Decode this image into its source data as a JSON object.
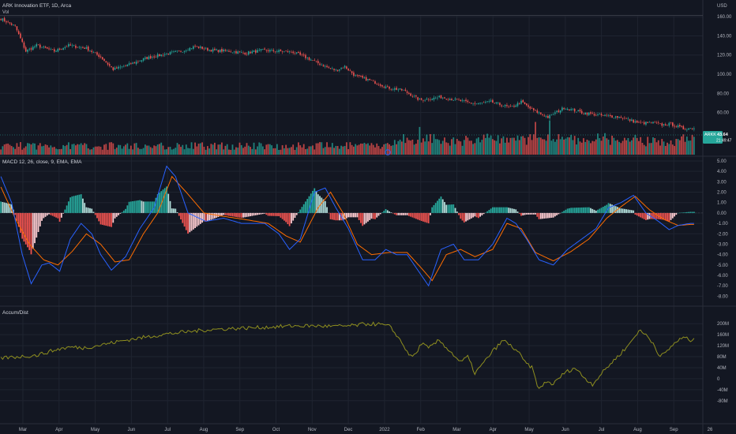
{
  "header": {
    "symbol_title": "ARK Innovation ETF, 1D, Arca",
    "vol_label": "Vol",
    "currency": "USD"
  },
  "price_badge": {
    "ticker": "ARKK",
    "price": "43.64",
    "countdown": "21:49:47"
  },
  "colors": {
    "background": "#131722",
    "up": "#26a69a",
    "down": "#ef5350",
    "macd_line": "#2962ff",
    "signal_line": "#ff6d00",
    "accum_line": "#8f8f1f",
    "badge": "#26a69a"
  },
  "chart_data": [
    {
      "type": "candlestick",
      "title": "ARK Innovation ETF, 1D, Arca",
      "y_ticks": [
        "160.00",
        "140.00",
        "120.00",
        "100.00",
        "80.00",
        "60.00"
      ],
      "ylim": [
        39,
        161
      ],
      "x_ticks": [
        "Mar",
        "Apr",
        "May",
        "Jun",
        "Jul",
        "Aug",
        "Sep",
        "Oct",
        "Nov",
        "Dec",
        "2022",
        "Feb",
        "Mar",
        "Apr",
        "May",
        "Jun",
        "Jul",
        "Aug",
        "Sep",
        "26"
      ],
      "close_path": [
        [
          0,
          158
        ],
        [
          8,
          150
        ],
        [
          14,
          124
        ],
        [
          20,
          130
        ],
        [
          30,
          124
        ],
        [
          38,
          130
        ],
        [
          48,
          127
        ],
        [
          56,
          118
        ],
        [
          63,
          105
        ],
        [
          72,
          110
        ],
        [
          82,
          117
        ],
        [
          92,
          121
        ],
        [
          101,
          124
        ],
        [
          109,
          129
        ],
        [
          118,
          125
        ],
        [
          128,
          124
        ],
        [
          137,
          122
        ],
        [
          147,
          125
        ],
        [
          156,
          124
        ],
        [
          164,
          123
        ],
        [
          173,
          116
        ],
        [
          182,
          108
        ],
        [
          188,
          104
        ],
        [
          193,
          108
        ],
        [
          199,
          98
        ],
        [
          208,
          93
        ],
        [
          217,
          86
        ],
        [
          226,
          83
        ],
        [
          235,
          73
        ],
        [
          247,
          76
        ],
        [
          256,
          73
        ],
        [
          266,
          69
        ],
        [
          275,
          71
        ],
        [
          286,
          65
        ],
        [
          292,
          71
        ],
        [
          298,
          63
        ],
        [
          307,
          55
        ],
        [
          316,
          65
        ],
        [
          326,
          60
        ],
        [
          336,
          57
        ],
        [
          348,
          55
        ],
        [
          358,
          49
        ],
        [
          366,
          49
        ],
        [
          371,
          47
        ],
        [
          376,
          48
        ],
        [
          383,
          43
        ],
        [
          390,
          44
        ]
      ],
      "volume": {
        "label": "Vol",
        "bars": 390
      },
      "last_price": 43.64
    },
    {
      "type": "line+histogram",
      "title": "MACD 12, 26, close, 9, EMA, EMA",
      "y_ticks": [
        "5.00",
        "4.00",
        "3.00",
        "2.00",
        "1.00",
        "0.00",
        "-1.00",
        "-2.00",
        "-3.00",
        "-4.00",
        "-5.00",
        "-6.00",
        "-7.00",
        "-8.00"
      ],
      "ylim": [
        -8.5,
        5.3
      ],
      "macd_path": [
        [
          0,
          3.5
        ],
        [
          6,
          1
        ],
        [
          12,
          -4
        ],
        [
          17,
          -6.8
        ],
        [
          23,
          -5
        ],
        [
          27,
          -4.8
        ],
        [
          33,
          -5.6
        ],
        [
          39,
          -2.5
        ],
        [
          45,
          -1
        ],
        [
          51,
          -2
        ],
        [
          56,
          -4
        ],
        [
          62,
          -5.5
        ],
        [
          70,
          -4.2
        ],
        [
          78,
          -1.5
        ],
        [
          86,
          0.5
        ],
        [
          93,
          4.5
        ],
        [
          98,
          3.5
        ],
        [
          105,
          0
        ],
        [
          115,
          -0.8
        ],
        [
          125,
          -0.5
        ],
        [
          135,
          -1
        ],
        [
          148,
          -1
        ],
        [
          156,
          -2
        ],
        [
          162,
          -3.5
        ],
        [
          168,
          -2.5
        ],
        [
          176,
          2
        ],
        [
          182,
          2.4
        ],
        [
          188,
          0.5
        ],
        [
          195,
          -1.5
        ],
        [
          203,
          -4.5
        ],
        [
          210,
          -4.5
        ],
        [
          216,
          -3.5
        ],
        [
          222,
          -4
        ],
        [
          228,
          -4
        ],
        [
          234,
          -5.5
        ],
        [
          240,
          -7
        ],
        [
          247,
          -3.5
        ],
        [
          254,
          -3
        ],
        [
          260,
          -4.5
        ],
        [
          268,
          -4.5
        ],
        [
          276,
          -3
        ],
        [
          284,
          -0.5
        ],
        [
          289,
          -1
        ],
        [
          295,
          -2.5
        ],
        [
          302,
          -4.5
        ],
        [
          310,
          -5
        ],
        [
          318,
          -3.5
        ],
        [
          326,
          -2.5
        ],
        [
          334,
          -1.5
        ],
        [
          341,
          0.5
        ],
        [
          348,
          1
        ],
        [
          355,
          1.7
        ],
        [
          362,
          0
        ],
        [
          369,
          -0.8
        ],
        [
          375,
          -1.6
        ],
        [
          380,
          -1.2
        ],
        [
          387,
          -1
        ]
      ],
      "signal_path": [
        [
          0,
          2.5
        ],
        [
          8,
          -0.5
        ],
        [
          16,
          -3
        ],
        [
          24,
          -4.5
        ],
        [
          32,
          -5
        ],
        [
          40,
          -3.7
        ],
        [
          48,
          -2
        ],
        [
          56,
          -3
        ],
        [
          64,
          -4.7
        ],
        [
          72,
          -4.5
        ],
        [
          80,
          -2
        ],
        [
          88,
          0
        ],
        [
          96,
          3.5
        ],
        [
          104,
          2
        ],
        [
          114,
          0
        ],
        [
          124,
          -0.3
        ],
        [
          136,
          -0.6
        ],
        [
          150,
          -1
        ],
        [
          160,
          -2.2
        ],
        [
          168,
          -2.8
        ],
        [
          178,
          0.5
        ],
        [
          185,
          2
        ],
        [
          192,
          0
        ],
        [
          200,
          -3
        ],
        [
          208,
          -4
        ],
        [
          218,
          -3.8
        ],
        [
          228,
          -3.8
        ],
        [
          236,
          -5.3
        ],
        [
          242,
          -6.5
        ],
        [
          250,
          -4
        ],
        [
          258,
          -3.5
        ],
        [
          266,
          -4.2
        ],
        [
          276,
          -3.5
        ],
        [
          284,
          -1
        ],
        [
          292,
          -1.5
        ],
        [
          300,
          -3.8
        ],
        [
          310,
          -4.6
        ],
        [
          320,
          -3.7
        ],
        [
          330,
          -2.5
        ],
        [
          340,
          -0.5
        ],
        [
          348,
          0.6
        ],
        [
          356,
          1.6
        ],
        [
          364,
          0.3
        ],
        [
          372,
          -0.6
        ],
        [
          380,
          -1.2
        ],
        [
          387,
          -1.1
        ]
      ],
      "histogram_bars": 390
    },
    {
      "type": "line",
      "title": "Accum/Dist",
      "y_ticks": [
        "200M",
        "160M",
        "120M",
        "80M",
        "40M",
        "0",
        "-40M",
        "-80M"
      ],
      "ylim": [
        -95,
        215
      ],
      "line_path": [
        [
          0,
          75
        ],
        [
          10,
          80
        ],
        [
          20,
          85
        ],
        [
          28,
          100
        ],
        [
          34,
          110
        ],
        [
          40,
          115
        ],
        [
          46,
          112
        ],
        [
          54,
          120
        ],
        [
          60,
          128
        ],
        [
          70,
          140
        ],
        [
          80,
          150
        ],
        [
          92,
          162
        ],
        [
          104,
          170
        ],
        [
          116,
          178
        ],
        [
          128,
          182
        ],
        [
          140,
          185
        ],
        [
          152,
          188
        ],
        [
          164,
          192
        ],
        [
          176,
          192
        ],
        [
          188,
          190
        ],
        [
          198,
          193
        ],
        [
          206,
          200
        ],
        [
          212,
          198
        ],
        [
          218,
          190
        ],
        [
          222,
          160
        ],
        [
          226,
          120
        ],
        [
          230,
          80
        ],
        [
          233,
          90
        ],
        [
          236,
          130
        ],
        [
          240,
          110
        ],
        [
          246,
          140
        ],
        [
          252,
          100
        ],
        [
          258,
          60
        ],
        [
          262,
          80
        ],
        [
          266,
          20
        ],
        [
          270,
          50
        ],
        [
          276,
          100
        ],
        [
          282,
          140
        ],
        [
          286,
          120
        ],
        [
          290,
          100
        ],
        [
          294,
          60
        ],
        [
          298,
          40
        ],
        [
          302,
          -40
        ],
        [
          306,
          -10
        ],
        [
          310,
          -20
        ],
        [
          316,
          20
        ],
        [
          322,
          40
        ],
        [
          328,
          0
        ],
        [
          332,
          -20
        ],
        [
          336,
          10
        ],
        [
          340,
          40
        ],
        [
          346,
          80
        ],
        [
          352,
          120
        ],
        [
          358,
          175
        ],
        [
          362,
          160
        ],
        [
          366,
          130
        ],
        [
          370,
          80
        ],
        [
          374,
          100
        ],
        [
          378,
          130
        ],
        [
          383,
          150
        ],
        [
          387,
          140
        ]
      ]
    }
  ]
}
